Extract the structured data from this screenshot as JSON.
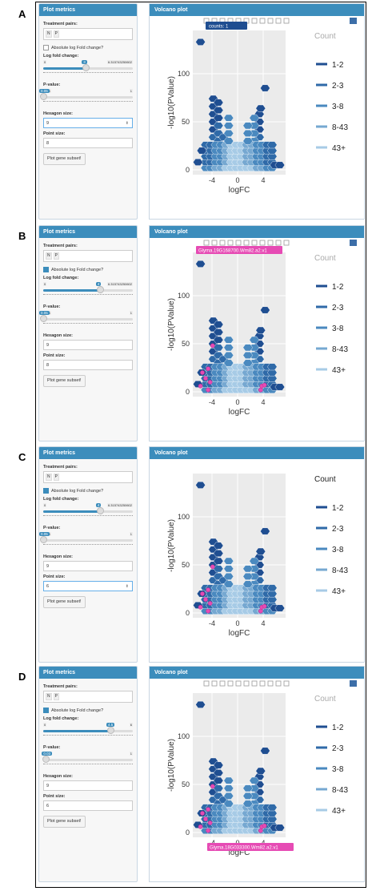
{
  "panels": [
    {
      "letter": "A",
      "sidebar_title": "Plot metrics",
      "treatment_label": "Treatment pairs:",
      "treatment_tags": [
        "N",
        "P"
      ],
      "abs_label": "Absolute log Fold change?",
      "abs_checked": false,
      "logfc_label": "Log fold change:",
      "logfc_min": "0",
      "logfc_max": "6.315743250602",
      "logfc_value": "3",
      "logfc_fraction": 0.475,
      "pvalue_label": "P-value:",
      "pvalue_min": "0.05",
      "pvalue_max": "1",
      "pvalue_value": "0.05",
      "pvalue_fraction": 0.0,
      "hex_label": "Hexagon size:",
      "hex_value": "9",
      "hex_focused": true,
      "point_label": "Point size:",
      "point_value": "8",
      "point_focused": false,
      "button_label": "Plot gene subset!",
      "plot_title": "Volcano plot",
      "legend_title": "Count",
      "tooltip": "counts:   1",
      "tooltip_type": "dark",
      "show_toolbar": true,
      "pink_points": false
    },
    {
      "letter": "B",
      "sidebar_title": "Plot metrics",
      "treatment_label": "Treatment pairs:",
      "treatment_tags": [
        "N",
        "P"
      ],
      "abs_label": "Absolute log Fold change?",
      "abs_checked": true,
      "logfc_label": "Log fold change:",
      "logfc_min": "0",
      "logfc_max": "6.315743250602",
      "logfc_value": "4",
      "logfc_fraction": 0.633,
      "pvalue_label": "P-value:",
      "pvalue_min": "0.05",
      "pvalue_max": "1",
      "pvalue_value": "0.05",
      "pvalue_fraction": 0.0,
      "hex_label": "Hexagon size:",
      "hex_value": "9",
      "hex_focused": false,
      "point_label": "Point size:",
      "point_value": "8",
      "point_focused": false,
      "button_label": "Plot gene subset!",
      "plot_title": "Volcano plot",
      "legend_title": "Count",
      "tooltip": "Glyma.19G168700.Wm82.a2.v1",
      "tooltip_type": "pink",
      "show_toolbar": true,
      "pink_points": true
    },
    {
      "letter": "C",
      "sidebar_title": "Plot metrics",
      "treatment_label": "Treatment pairs:",
      "treatment_tags": [
        "N",
        "P"
      ],
      "abs_label": "Absolute log Fold change?",
      "abs_checked": true,
      "logfc_label": "Log fold change:",
      "logfc_min": "0",
      "logfc_max": "6.315743250602",
      "logfc_value": "4",
      "logfc_fraction": 0.633,
      "pvalue_label": "P-value:",
      "pvalue_min": "0.05",
      "pvalue_max": "1",
      "pvalue_value": "0.05",
      "pvalue_fraction": 0.0,
      "hex_label": "Hexagon size:",
      "hex_value": "9",
      "hex_focused": false,
      "point_label": "Point size:",
      "point_value": "6",
      "point_focused": true,
      "button_label": "Plot gene subset!",
      "plot_title": "Volcano plot",
      "legend_title": "Count",
      "tooltip": "",
      "tooltip_type": "none",
      "show_toolbar": false,
      "pink_points": true
    },
    {
      "letter": "D",
      "sidebar_title": "Plot metrics",
      "treatment_label": "Treatment pairs:",
      "treatment_tags": [
        "N",
        "P"
      ],
      "abs_label": "Absolute log Fold change?",
      "abs_checked": true,
      "logfc_label": "Log fold change:",
      "logfc_min": "0",
      "logfc_max": "6",
      "logfc_value": "4.5",
      "logfc_fraction": 0.75,
      "pvalue_label": "P-value:",
      "pvalue_min": "0",
      "pvalue_max": "1",
      "pvalue_value": "0.03",
      "pvalue_fraction": 0.03,
      "hex_label": "Hexagon size:",
      "hex_value": "9",
      "hex_focused": false,
      "point_label": "Point size:",
      "point_value": "6",
      "point_focused": false,
      "button_label": "Plot gene subset!",
      "plot_title": "Volcano plot",
      "legend_title": "Count",
      "tooltip": "Glyma.18G033300.Wm82.a2.v1",
      "tooltip_type": "pink",
      "show_toolbar": true,
      "pink_points": true
    }
  ],
  "chart_data": {
    "type": "heatmap",
    "xlabel": "logFC",
    "ylabel": "-log10(PValue)",
    "xticks": [
      -4,
      0,
      4
    ],
    "yticks": [
      0,
      50,
      100
    ],
    "xlim": [
      -7,
      7.5
    ],
    "ylim": [
      -5,
      145
    ],
    "legend": [
      "1-2",
      "2-3",
      "3-8",
      "8-43",
      "43+"
    ],
    "colors": [
      "#1f4e91",
      "#2f6aa8",
      "#4a89bf",
      "#76a8d1",
      "#a7cbe6"
    ]
  }
}
